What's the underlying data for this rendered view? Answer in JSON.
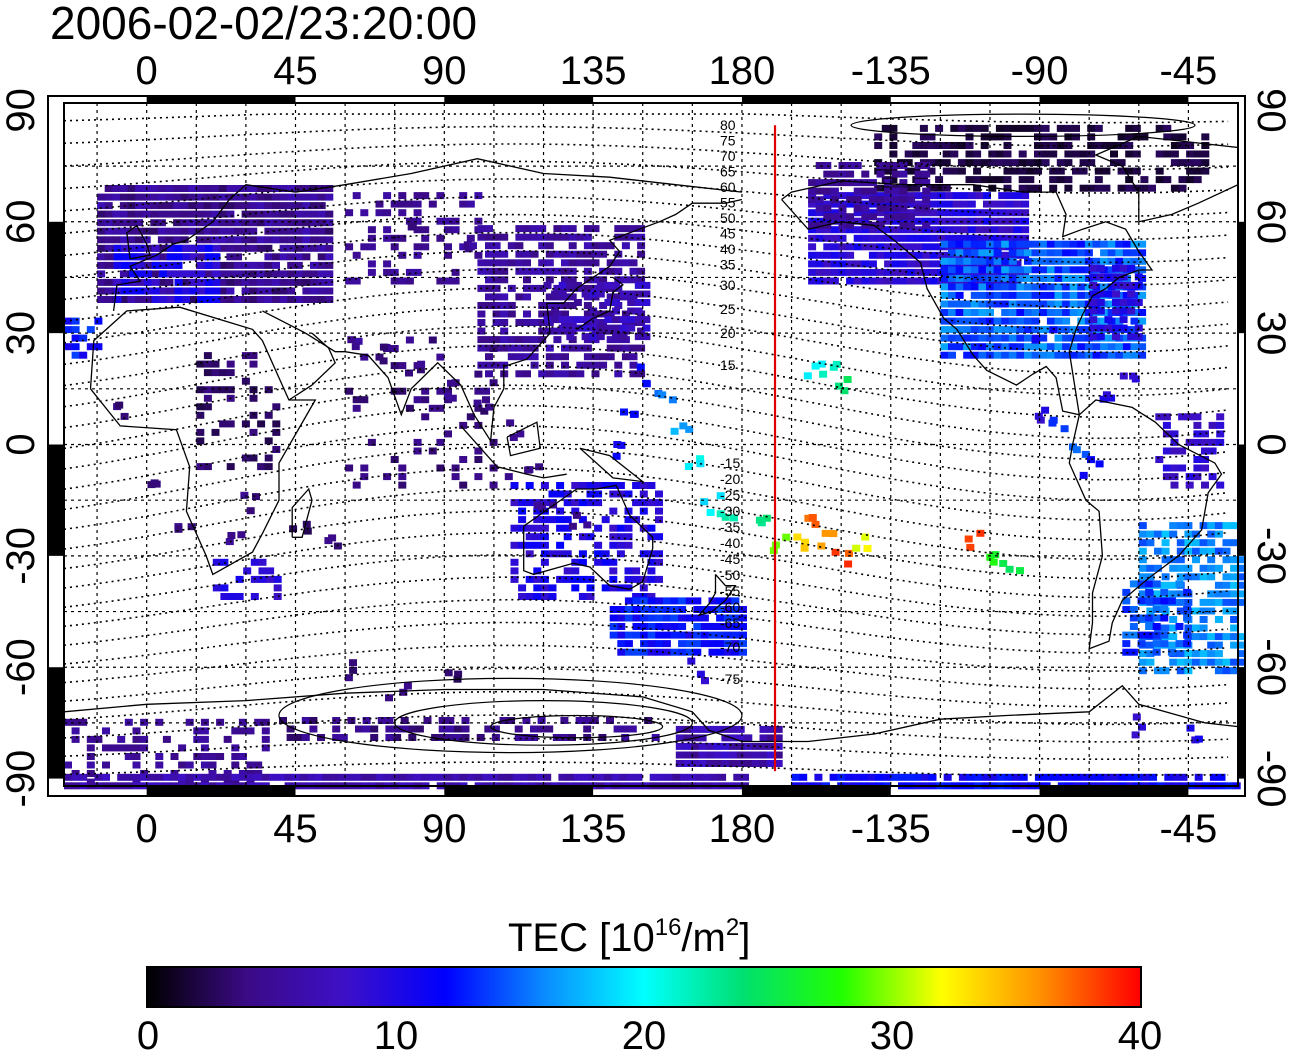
{
  "title": "2006-02-02/23:20:00",
  "map": {
    "x_ticks": [
      "0",
      "45",
      "90",
      "135",
      "180",
      "-135",
      "-90",
      "-45"
    ],
    "x_tick_lon": [
      0,
      45,
      90,
      135,
      180,
      225,
      270,
      315
    ],
    "y_ticks": [
      "90",
      "60",
      "30",
      "0",
      "-30",
      "-60",
      "-90"
    ],
    "y_tick_lat": [
      90,
      60,
      30,
      0,
      -30,
      -60,
      -90
    ],
    "lon_range": [
      -25,
      330
    ],
    "lat_range": [
      -92,
      92
    ],
    "terminator_lon": 190,
    "terminator_color": "#e00000",
    "contour_labels_north": [
      "80",
      "75",
      "70",
      "65",
      "60",
      "55",
      "50",
      "45",
      "40",
      "35",
      "30",
      "25",
      "20",
      "15"
    ],
    "contour_labels_south": [
      "-15",
      "-20",
      "-25",
      "-30",
      "-35",
      "-40",
      "-45",
      "-50",
      "-55",
      "-60",
      "-65",
      "-70",
      "-75"
    ],
    "grid": true
  },
  "colorbar": {
    "title_text": "TEC  [10",
    "title_sup1": "16",
    "title_mid": "/m",
    "title_sup2": "2",
    "title_end": "]",
    "min": 0,
    "max": 40,
    "ticks": [
      "0",
      "10",
      "20",
      "30",
      "40"
    ],
    "colormap": [
      "#000000",
      "#3b0a86",
      "#3d10c8",
      "#0000ff",
      "#0a8cff",
      "#00ffff",
      "#00e070",
      "#22ff00",
      "#ffff00",
      "#ff9000",
      "#ff0000"
    ]
  }
}
